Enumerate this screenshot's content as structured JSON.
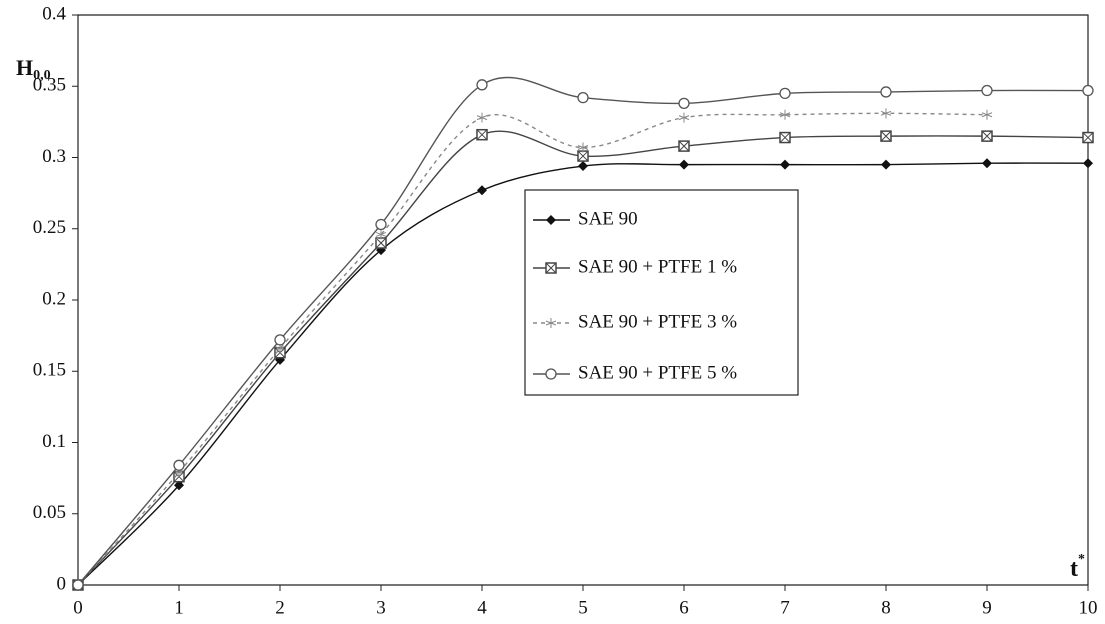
{
  "chart_data": {
    "type": "line",
    "y_label": "H",
    "y_label_sub": "0,0",
    "x_label": "t",
    "x_label_sup": "*",
    "x": [
      0,
      1,
      2,
      3,
      4,
      5,
      6,
      7,
      8,
      9,
      10
    ],
    "xlim": [
      0,
      10
    ],
    "xticks": [
      0,
      1,
      2,
      3,
      4,
      5,
      6,
      7,
      8,
      9,
      10
    ],
    "ylim": [
      0,
      0.4
    ],
    "yticks": [
      0,
      0.05,
      0.1,
      0.15,
      0.2,
      0.25,
      0.3,
      0.35,
      0.4
    ],
    "grid": false,
    "legend": "center",
    "series": [
      {
        "name": "SAE 90",
        "color": "#111111",
        "marker": "diamond",
        "dash": "solid",
        "values": [
          0,
          0.07,
          0.158,
          0.235,
          0.277,
          0.294,
          0.295,
          0.295,
          0.295,
          0.296,
          0.296
        ]
      },
      {
        "name": "SAE 90 + PTFE 1 %",
        "color": "#444444",
        "marker": "square",
        "dash": "solid",
        "values": [
          0,
          0.076,
          0.163,
          0.24,
          0.316,
          0.301,
          0.308,
          0.314,
          0.315,
          0.315,
          0.314
        ]
      },
      {
        "name": "SAE 90 + PTFE 3 %",
        "color": "#888888",
        "marker": "star",
        "dash": "dashed",
        "values": [
          0,
          0.079,
          0.166,
          0.246,
          0.328,
          0.307,
          0.328,
          0.33,
          0.331,
          0.33,
          null
        ]
      },
      {
        "name": "SAE 90 + PTFE 5 %",
        "color": "#555555",
        "marker": "circle",
        "dash": "solid",
        "values": [
          0,
          0.084,
          0.172,
          0.253,
          0.351,
          0.342,
          0.338,
          0.345,
          0.346,
          0.347,
          0.347
        ]
      }
    ]
  }
}
